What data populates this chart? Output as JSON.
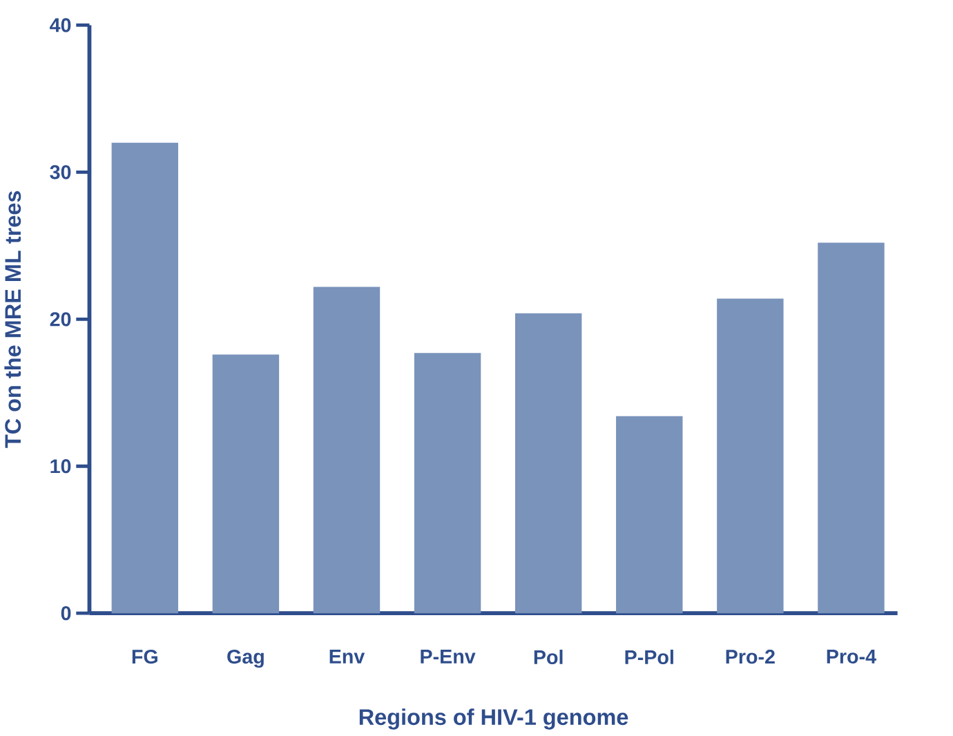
{
  "chart_data": {
    "type": "bar",
    "xlabel": "Regions of HIV-1 genome",
    "ylabel": "TC on the MRE ML trees",
    "categories": [
      "FG",
      "Gag",
      "Env",
      "P-Env",
      "Pol",
      "P-Pol",
      "Pro-2",
      "Pro-4"
    ],
    "values": [
      32.0,
      17.6,
      22.2,
      17.7,
      20.4,
      13.4,
      21.4,
      25.2
    ],
    "color": "#7a93bb",
    "ylim": [
      0,
      40
    ],
    "yticks": [
      0,
      10,
      20,
      30,
      40
    ],
    "grid": false
  }
}
